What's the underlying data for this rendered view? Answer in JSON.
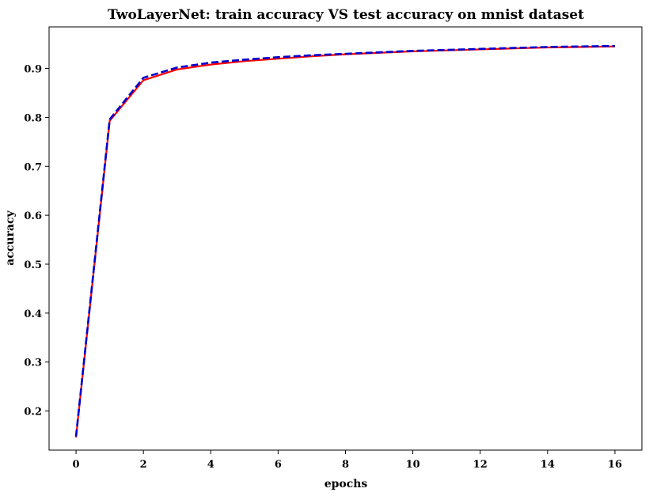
{
  "chart_data": {
    "type": "line",
    "title": "TwoLayerNet: train accuracy VS test accuracy on mnist dataset",
    "xlabel": "epochs",
    "ylabel": "accuracy",
    "xlim": [
      -0.8,
      16.8
    ],
    "ylim": [
      0.12,
      0.985
    ],
    "xticks": [
      0,
      2,
      4,
      6,
      8,
      10,
      12,
      14,
      16
    ],
    "yticks": [
      0.2,
      0.3,
      0.4,
      0.5,
      0.6,
      0.7,
      0.8,
      0.9
    ],
    "grid": false,
    "legend": "none",
    "x": [
      0,
      1,
      2,
      3,
      4,
      5,
      6,
      7,
      8,
      9,
      10,
      11,
      12,
      13,
      14,
      15,
      16
    ],
    "series": [
      {
        "color": "#ff0000",
        "style": "solid",
        "values": [
          0.146,
          0.793,
          0.876,
          0.898,
          0.908,
          0.915,
          0.92,
          0.925,
          0.929,
          0.932,
          0.935,
          0.937,
          0.939,
          0.941,
          0.943,
          0.944,
          0.945
        ]
      },
      {
        "color": "#0000cc",
        "style": "dashed",
        "values": [
          0.148,
          0.796,
          0.881,
          0.902,
          0.912,
          0.918,
          0.923,
          0.927,
          0.93,
          0.933,
          0.936,
          0.938,
          0.94,
          0.942,
          0.944,
          0.945,
          0.946
        ]
      }
    ]
  }
}
